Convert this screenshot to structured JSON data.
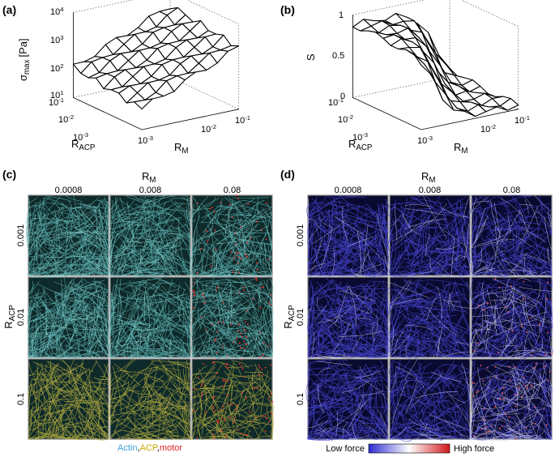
{
  "panels": {
    "a": {
      "label": "(a)",
      "z_axis": {
        "symbol": "σ",
        "subscript": "max",
        "unit": "[Pa]"
      },
      "z_ticks": [
        {
          "base": "10",
          "exponent": "4"
        },
        {
          "base": "10",
          "exponent": "3"
        },
        {
          "base": "10",
          "exponent": "2"
        },
        {
          "base": "10",
          "exponent": "1"
        }
      ],
      "x_axis": {
        "symbol": "R",
        "subscript": "ACP"
      },
      "x_ticks": [
        {
          "base": "10",
          "exponent": "-1"
        },
        {
          "base": "10",
          "exponent": "-2"
        },
        {
          "base": "10",
          "exponent": "-3"
        }
      ],
      "y_axis": {
        "symbol": "R",
        "subscript": "M"
      },
      "y_ticks": [
        {
          "base": "10",
          "exponent": "-3"
        },
        {
          "base": "10",
          "exponent": "-2"
        },
        {
          "base": "10",
          "exponent": "-1"
        }
      ]
    },
    "b": {
      "label": "(b)",
      "z_axis": {
        "symbol": "S"
      },
      "z_ticks": [
        "1",
        "0.5",
        "0"
      ],
      "x_axis": {
        "symbol": "R",
        "subscript": "ACP"
      },
      "x_ticks": [
        {
          "base": "10",
          "exponent": "-1"
        },
        {
          "base": "10",
          "exponent": "-2"
        },
        {
          "base": "10",
          "exponent": "-3"
        }
      ],
      "y_axis": {
        "symbol": "R",
        "subscript": "M"
      },
      "y_ticks": [
        {
          "base": "10",
          "exponent": "-3"
        },
        {
          "base": "10",
          "exponent": "-2"
        },
        {
          "base": "10",
          "exponent": "-1"
        }
      ]
    },
    "c": {
      "label": "(c)",
      "column_axis": {
        "symbol": "R",
        "subscript": "M"
      },
      "columns": [
        "0.0008",
        "0.008",
        "0.08"
      ],
      "row_axis": {
        "symbol": "R",
        "subscript": "ACP"
      },
      "rows": [
        "0.001",
        "0.01",
        "0.1"
      ],
      "legend": {
        "items": [
          "Actin",
          "ACP",
          "motor"
        ],
        "separator": ","
      }
    },
    "d": {
      "label": "(d)",
      "column_axis": {
        "symbol": "R",
        "subscript": "M"
      },
      "columns": [
        "0.0008",
        "0.008",
        "0.08"
      ],
      "row_axis": {
        "symbol": "R",
        "subscript": "ACP"
      },
      "rows": [
        "0.001",
        "0.01",
        "0.1"
      ],
      "colorbar": {
        "low": "Low force",
        "high": "High force"
      }
    }
  }
}
